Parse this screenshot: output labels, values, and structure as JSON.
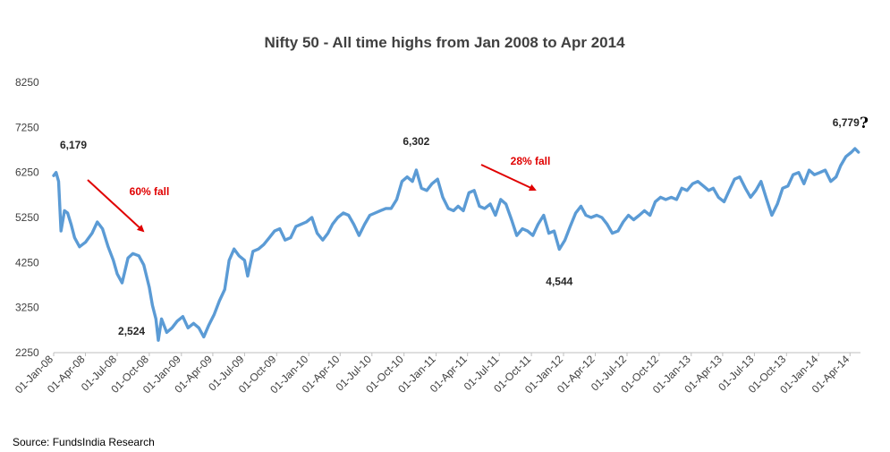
{
  "chart_data": {
    "type": "line",
    "title": "Nifty 50 - All time highs from Jan 2008 to Apr 2014",
    "xlabel": "",
    "ylabel": "",
    "ylim": [
      2250,
      8250
    ],
    "yticks": [
      "8250",
      "7250",
      "6250",
      "5250",
      "4250",
      "3250",
      "2250"
    ],
    "yticks_values": [
      8250,
      7250,
      6250,
      5250,
      4250,
      3250,
      2250
    ],
    "x_start": "2008-01-01",
    "x_end": "2014-05-01",
    "x_tick_labels": [
      "01-Jan-08",
      "01-Apr-08",
      "01-Jul-08",
      "01-Oct-08",
      "01-Jan-09",
      "01-Apr-09",
      "01-Jul-09",
      "01-Oct-09",
      "01-Jan-10",
      "01-Apr-10",
      "01-Jul-10",
      "01-Oct-10",
      "01-Jan-11",
      "01-Apr-11",
      "01-Jul-11",
      "01-Oct-11",
      "01-Jan-12",
      "01-Apr-12",
      "01-Jul-12",
      "01-Oct-12",
      "01-Jan-13",
      "01-Apr-13",
      "01-Jul-13",
      "01-Oct-13",
      "01-Jan-14",
      "01-Apr-14"
    ],
    "grid": false,
    "legend": "none",
    "line_color": "#5b9bd5",
    "series": [
      {
        "points": [
          [
            "2008-01-01",
            6179
          ],
          [
            "2008-01-08",
            6250
          ],
          [
            "2008-01-15",
            6050
          ],
          [
            "2008-01-22",
            4950
          ],
          [
            "2008-02-01",
            5400
          ],
          [
            "2008-02-10",
            5350
          ],
          [
            "2008-02-20",
            5100
          ],
          [
            "2008-03-01",
            4800
          ],
          [
            "2008-03-15",
            4600
          ],
          [
            "2008-04-01",
            4700
          ],
          [
            "2008-04-20",
            4900
          ],
          [
            "2008-05-05",
            5150
          ],
          [
            "2008-05-20",
            5000
          ],
          [
            "2008-06-05",
            4600
          ],
          [
            "2008-06-20",
            4300
          ],
          [
            "2008-07-01",
            4000
          ],
          [
            "2008-07-15",
            3800
          ],
          [
            "2008-08-01",
            4350
          ],
          [
            "2008-08-15",
            4450
          ],
          [
            "2008-09-01",
            4400
          ],
          [
            "2008-09-15",
            4200
          ],
          [
            "2008-10-01",
            3700
          ],
          [
            "2008-10-10",
            3300
          ],
          [
            "2008-10-20",
            3000
          ],
          [
            "2008-10-27",
            2524
          ],
          [
            "2008-11-05",
            3000
          ],
          [
            "2008-11-20",
            2700
          ],
          [
            "2008-12-05",
            2800
          ],
          [
            "2008-12-20",
            2950
          ],
          [
            "2009-01-05",
            3050
          ],
          [
            "2009-01-20",
            2800
          ],
          [
            "2009-02-05",
            2900
          ],
          [
            "2009-02-20",
            2800
          ],
          [
            "2009-03-06",
            2600
          ],
          [
            "2009-03-20",
            2850
          ],
          [
            "2009-04-05",
            3100
          ],
          [
            "2009-04-20",
            3400
          ],
          [
            "2009-05-05",
            3650
          ],
          [
            "2009-05-18",
            4300
          ],
          [
            "2009-06-01",
            4550
          ],
          [
            "2009-06-15",
            4400
          ],
          [
            "2009-07-01",
            4300
          ],
          [
            "2009-07-10",
            3950
          ],
          [
            "2009-07-25",
            4500
          ],
          [
            "2009-08-10",
            4550
          ],
          [
            "2009-08-25",
            4650
          ],
          [
            "2009-09-10",
            4800
          ],
          [
            "2009-09-25",
            4950
          ],
          [
            "2009-10-10",
            5000
          ],
          [
            "2009-10-25",
            4750
          ],
          [
            "2009-11-10",
            4800
          ],
          [
            "2009-11-25",
            5050
          ],
          [
            "2009-12-10",
            5100
          ],
          [
            "2009-12-25",
            5150
          ],
          [
            "2010-01-10",
            5250
          ],
          [
            "2010-01-25",
            4900
          ],
          [
            "2010-02-10",
            4750
          ],
          [
            "2010-02-25",
            4900
          ],
          [
            "2010-03-10",
            5100
          ],
          [
            "2010-03-25",
            5250
          ],
          [
            "2010-04-10",
            5350
          ],
          [
            "2010-04-25",
            5300
          ],
          [
            "2010-05-10",
            5100
          ],
          [
            "2010-05-25",
            4850
          ],
          [
            "2010-06-10",
            5100
          ],
          [
            "2010-06-25",
            5300
          ],
          [
            "2010-07-10",
            5350
          ],
          [
            "2010-07-25",
            5400
          ],
          [
            "2010-08-10",
            5450
          ],
          [
            "2010-08-25",
            5450
          ],
          [
            "2010-09-10",
            5650
          ],
          [
            "2010-09-25",
            6050
          ],
          [
            "2010-10-10",
            6150
          ],
          [
            "2010-10-25",
            6050
          ],
          [
            "2010-11-05",
            6302
          ],
          [
            "2010-11-20",
            5900
          ],
          [
            "2010-12-05",
            5850
          ],
          [
            "2010-12-20",
            6000
          ],
          [
            "2011-01-05",
            6100
          ],
          [
            "2011-01-20",
            5700
          ],
          [
            "2011-02-05",
            5450
          ],
          [
            "2011-02-20",
            5400
          ],
          [
            "2011-03-05",
            5500
          ],
          [
            "2011-03-20",
            5400
          ],
          [
            "2011-04-05",
            5800
          ],
          [
            "2011-04-20",
            5850
          ],
          [
            "2011-05-05",
            5500
          ],
          [
            "2011-05-20",
            5450
          ],
          [
            "2011-06-05",
            5550
          ],
          [
            "2011-06-20",
            5300
          ],
          [
            "2011-07-05",
            5650
          ],
          [
            "2011-07-20",
            5550
          ],
          [
            "2011-08-05",
            5200
          ],
          [
            "2011-08-20",
            4850
          ],
          [
            "2011-09-05",
            5000
          ],
          [
            "2011-09-20",
            4950
          ],
          [
            "2011-10-05",
            4850
          ],
          [
            "2011-10-20",
            5100
          ],
          [
            "2011-11-05",
            5300
          ],
          [
            "2011-11-20",
            4900
          ],
          [
            "2011-12-05",
            4950
          ],
          [
            "2011-12-20",
            4544
          ],
          [
            "2012-01-05",
            4750
          ],
          [
            "2012-01-20",
            5050
          ],
          [
            "2012-02-05",
            5350
          ],
          [
            "2012-02-20",
            5500
          ],
          [
            "2012-03-05",
            5300
          ],
          [
            "2012-03-20",
            5250
          ],
          [
            "2012-04-05",
            5300
          ],
          [
            "2012-04-20",
            5250
          ],
          [
            "2012-05-05",
            5100
          ],
          [
            "2012-05-20",
            4900
          ],
          [
            "2012-06-05",
            4950
          ],
          [
            "2012-06-20",
            5150
          ],
          [
            "2012-07-05",
            5300
          ],
          [
            "2012-07-20",
            5200
          ],
          [
            "2012-08-05",
            5300
          ],
          [
            "2012-08-20",
            5400
          ],
          [
            "2012-09-05",
            5300
          ],
          [
            "2012-09-20",
            5600
          ],
          [
            "2012-10-05",
            5700
          ],
          [
            "2012-10-20",
            5650
          ],
          [
            "2012-11-05",
            5700
          ],
          [
            "2012-11-20",
            5650
          ],
          [
            "2012-12-05",
            5900
          ],
          [
            "2012-12-20",
            5850
          ],
          [
            "2013-01-05",
            6000
          ],
          [
            "2013-01-20",
            6050
          ],
          [
            "2013-02-05",
            5950
          ],
          [
            "2013-02-20",
            5850
          ],
          [
            "2013-03-05",
            5900
          ],
          [
            "2013-03-20",
            5700
          ],
          [
            "2013-04-05",
            5600
          ],
          [
            "2013-04-20",
            5850
          ],
          [
            "2013-05-05",
            6100
          ],
          [
            "2013-05-20",
            6150
          ],
          [
            "2013-06-05",
            5900
          ],
          [
            "2013-06-20",
            5700
          ],
          [
            "2013-07-05",
            5850
          ],
          [
            "2013-07-20",
            6050
          ],
          [
            "2013-08-05",
            5650
          ],
          [
            "2013-08-20",
            5300
          ],
          [
            "2013-09-05",
            5550
          ],
          [
            "2013-09-20",
            5900
          ],
          [
            "2013-10-05",
            5950
          ],
          [
            "2013-10-20",
            6200
          ],
          [
            "2013-11-05",
            6250
          ],
          [
            "2013-11-20",
            6000
          ],
          [
            "2013-12-05",
            6300
          ],
          [
            "2013-12-20",
            6200
          ],
          [
            "2014-01-05",
            6250
          ],
          [
            "2014-01-20",
            6300
          ],
          [
            "2014-02-05",
            6050
          ],
          [
            "2014-02-20",
            6150
          ],
          [
            "2014-03-05",
            6400
          ],
          [
            "2014-03-20",
            6600
          ],
          [
            "2014-04-05",
            6700
          ],
          [
            "2014-04-15",
            6779
          ],
          [
            "2014-04-25",
            6700
          ]
        ]
      }
    ],
    "annotations": [
      {
        "text": "6,179",
        "x": "2008-01-01",
        "y": 6179,
        "role": "value"
      },
      {
        "text": "2,524",
        "x": "2008-10-27",
        "y": 2524,
        "role": "value"
      },
      {
        "text": "6,302",
        "x": "2010-11-05",
        "y": 6302,
        "role": "value"
      },
      {
        "text": "4,544",
        "x": "2011-12-20",
        "y": 4544,
        "role": "value"
      },
      {
        "text": "6,779",
        "x": "2014-04-15",
        "y": 6779,
        "role": "value"
      },
      {
        "text": "60% fall",
        "role": "fall"
      },
      {
        "text": "28% fall",
        "role": "fall"
      },
      {
        "text": "?",
        "role": "question"
      }
    ],
    "source": "Source: FundsIndia Research"
  }
}
